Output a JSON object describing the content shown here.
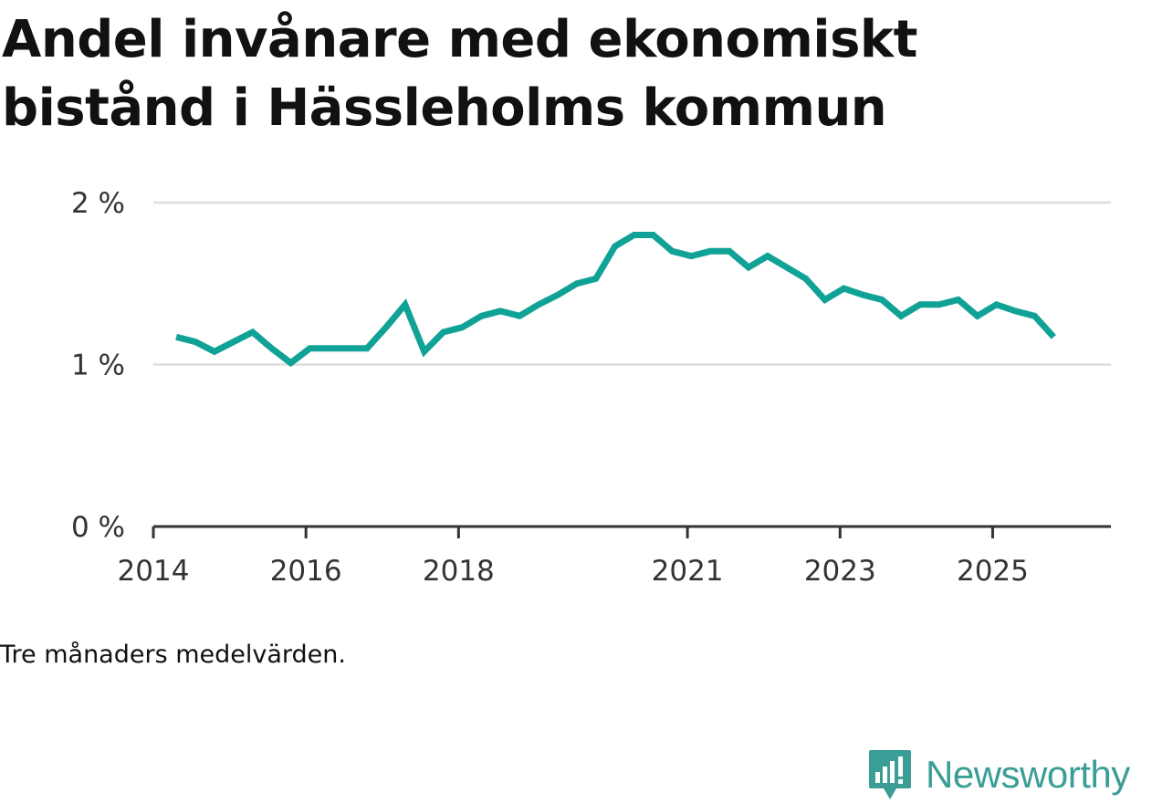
{
  "title": "Andel invånare med ekonomiskt bistånd i Hässleholms kommun",
  "note": "Tre månaders medelvärden.",
  "brand": {
    "name": "Newsworthy",
    "icon": "newsworthy-logo-icon",
    "color": "#3a9e96"
  },
  "colors": {
    "line": "#10a296",
    "grid": "#dddddd",
    "axis": "#333333"
  },
  "chart_data": {
    "type": "line",
    "title": "Andel invånare med ekonomiskt bistånd i Hässleholms kommun",
    "xlabel": "",
    "ylabel": "",
    "ylim": [
      0,
      2
    ],
    "xlim": [
      2014.0,
      2026.55
    ],
    "grid": true,
    "legend": "none",
    "y_ticks": [
      {
        "value": 0,
        "label": "0 %"
      },
      {
        "value": 1,
        "label": "1 %"
      },
      {
        "value": 2,
        "label": "2 %"
      }
    ],
    "x_ticks": [
      {
        "value": 2014,
        "label": "2014"
      },
      {
        "value": 2016,
        "label": "2016"
      },
      {
        "value": 2018,
        "label": "2018"
      },
      {
        "value": 2021,
        "label": "2021"
      },
      {
        "value": 2023,
        "label": "2023"
      },
      {
        "value": 2025,
        "label": "2025"
      }
    ],
    "series": [
      {
        "name": "Andel invånare med ekonomiskt bistånd",
        "x": [
          2014.3,
          2014.55,
          2014.8,
          2015.05,
          2015.3,
          2015.55,
          2015.8,
          2016.05,
          2016.3,
          2016.55,
          2016.8,
          2017.05,
          2017.3,
          2017.55,
          2017.8,
          2018.05,
          2018.3,
          2018.55,
          2018.8,
          2019.05,
          2019.3,
          2019.55,
          2019.8,
          2020.05,
          2020.3,
          2020.55,
          2020.8,
          2021.05,
          2021.3,
          2021.55,
          2021.8,
          2022.05,
          2022.3,
          2022.55,
          2022.8,
          2023.05,
          2023.3,
          2023.55,
          2023.8,
          2024.05,
          2024.3,
          2024.55,
          2024.8,
          2025.05,
          2025.3,
          2025.55,
          2025.8
        ],
        "values": [
          1.17,
          1.14,
          1.08,
          1.14,
          1.2,
          1.1,
          1.01,
          1.1,
          1.1,
          1.1,
          1.1,
          1.23,
          1.37,
          1.08,
          1.2,
          1.23,
          1.3,
          1.33,
          1.3,
          1.37,
          1.43,
          1.5,
          1.53,
          1.73,
          1.8,
          1.8,
          1.7,
          1.67,
          1.7,
          1.7,
          1.6,
          1.67,
          1.6,
          1.53,
          1.4,
          1.47,
          1.43,
          1.4,
          1.3,
          1.37,
          1.37,
          1.4,
          1.3,
          1.37,
          1.33,
          1.3,
          1.17
        ]
      }
    ]
  }
}
